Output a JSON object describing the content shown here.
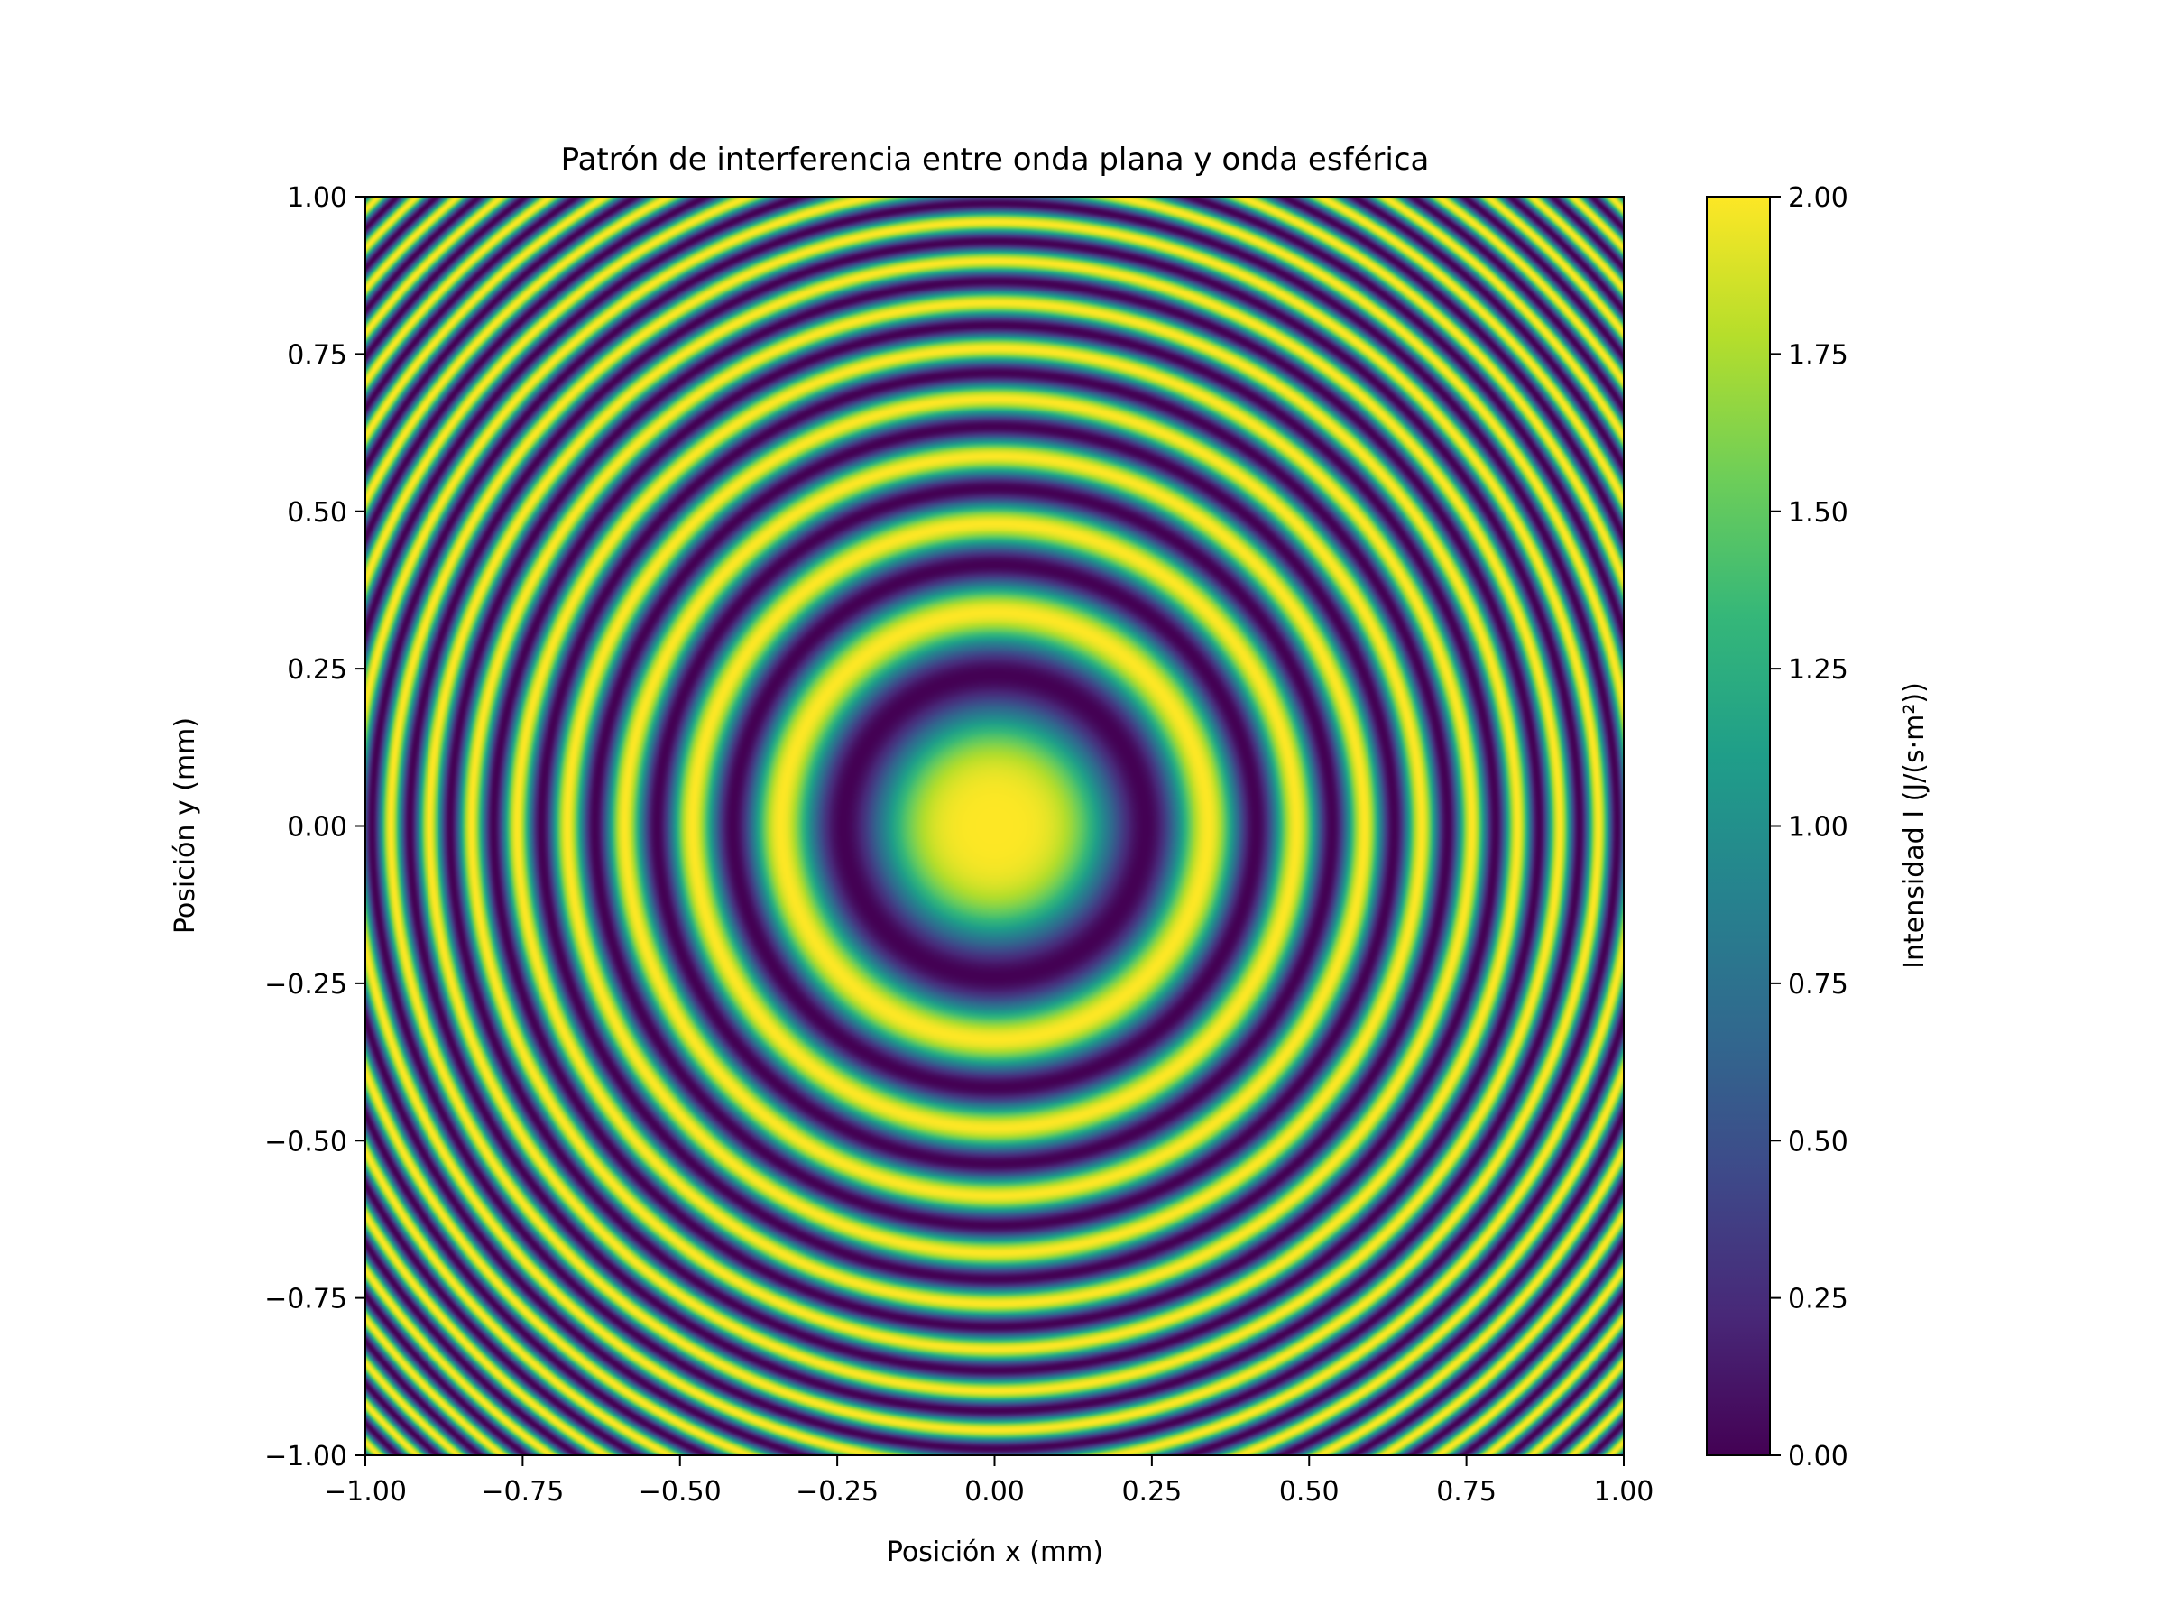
{
  "chart_data": {
    "type": "heatmap",
    "title": "Patrón de interferencia entre onda plana y onda esférica",
    "xlabel": "Posición x (mm)",
    "ylabel": "Posición y (mm)",
    "xlim": [
      -1.0,
      1.0
    ],
    "ylim": [
      -1.0,
      1.0
    ],
    "xticks": [
      "−1.00",
      "−0.75",
      "−0.50",
      "−0.25",
      "0.00",
      "0.25",
      "0.50",
      "0.75",
      "1.00"
    ],
    "yticks": [
      "−1.00",
      "−0.75",
      "−0.50",
      "−0.25",
      "0.00",
      "0.25",
      "0.50",
      "0.75",
      "1.00"
    ],
    "xtick_values": [
      -1.0,
      -0.75,
      -0.5,
      -0.25,
      0.0,
      0.25,
      0.5,
      0.75,
      1.0
    ],
    "ytick_values": [
      -1.0,
      -0.75,
      -0.5,
      -0.25,
      0.0,
      0.25,
      0.5,
      0.75,
      1.0
    ],
    "colorbar": {
      "label": "Intensidad I (J/(s·m²))",
      "range": [
        0.0,
        2.0
      ],
      "ticks": [
        "0.00",
        "0.25",
        "0.50",
        "0.75",
        "1.00",
        "1.25",
        "1.50",
        "1.75",
        "2.00"
      ],
      "tick_values": [
        0.0,
        0.25,
        0.5,
        0.75,
        1.0,
        1.25,
        1.5,
        1.75,
        2.0
      ],
      "colormap": "viridis",
      "colors": [
        "#440154",
        "#482878",
        "#3e4989",
        "#31688e",
        "#26828e",
        "#1f9e89",
        "#35b779",
        "#6ece58",
        "#b5de2b",
        "#fde725"
      ]
    },
    "field": {
      "description_formula": "I(r) = 1 + cos(pi * (r / a)^2)",
      "dark_ring_radii_mm": [
        0.24,
        0.415,
        0.535,
        0.635,
        0.72,
        0.795,
        0.865,
        0.93,
        0.99
      ]
    },
    "grid": false,
    "legend": "none"
  }
}
